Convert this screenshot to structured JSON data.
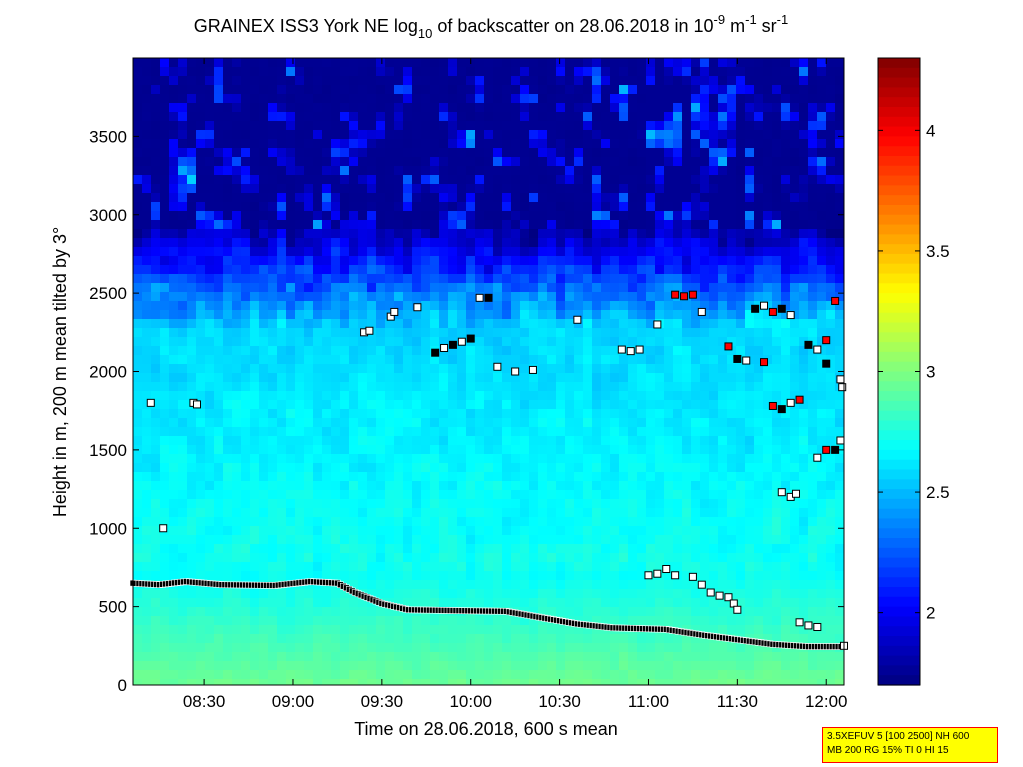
{
  "chart_data": {
    "type": "heatmap",
    "title_parts": {
      "prefix": "GRAINEX ISS3 York NE log",
      "sub": "10",
      "middle": " of backscatter on 28.06.2018 in 10",
      "sup1": "-9",
      "unit1": " m",
      "sup2": "-1",
      "unit2": " sr",
      "sup3": "-1"
    },
    "xlabel": "Time on 28.06.2018, 600 s mean",
    "ylabel": "Height in m, 200 m mean tilted by 3°",
    "x_range_hours": [
      8.1,
      12.1
    ],
    "ylim": [
      0,
      4000
    ],
    "x_ticks": [
      {
        "label": "08:30",
        "value": 8.5
      },
      {
        "label": "09:00",
        "value": 9.0
      },
      {
        "label": "09:30",
        "value": 9.5
      },
      {
        "label": "10:00",
        "value": 10.0
      },
      {
        "label": "10:30",
        "value": 10.5
      },
      {
        "label": "11:00",
        "value": 11.0
      },
      {
        "label": "11:30",
        "value": 11.5
      },
      {
        "label": "12:00",
        "value": 12.0
      }
    ],
    "y_ticks": [
      {
        "label": "0",
        "value": 0
      },
      {
        "label": "500",
        "value": 500
      },
      {
        "label": "1000",
        "value": 1000
      },
      {
        "label": "1500",
        "value": 1500
      },
      {
        "label": "2000",
        "value": 2000
      },
      {
        "label": "2500",
        "value": 2500
      },
      {
        "label": "3000",
        "value": 3000
      },
      {
        "label": "3500",
        "value": 3500
      }
    ],
    "colorbar": {
      "range": [
        1.7,
        4.3
      ],
      "ticks": [
        {
          "label": "2",
          "value": 2.0
        },
        {
          "label": "2.5",
          "value": 2.5
        },
        {
          "label": "3",
          "value": 3.0
        },
        {
          "label": "3.5",
          "value": 3.5
        },
        {
          "label": "4",
          "value": 4.0
        }
      ]
    },
    "boundary_layer_height": [
      [
        8.1,
        650
      ],
      [
        8.25,
        640
      ],
      [
        8.4,
        660
      ],
      [
        8.6,
        640
      ],
      [
        8.9,
        635
      ],
      [
        9.1,
        660
      ],
      [
        9.25,
        650
      ],
      [
        9.35,
        590
      ],
      [
        9.5,
        520
      ],
      [
        9.65,
        480
      ],
      [
        9.9,
        475
      ],
      [
        10.2,
        470
      ],
      [
        10.4,
        430
      ],
      [
        10.6,
        390
      ],
      [
        10.8,
        365
      ],
      [
        11.1,
        355
      ],
      [
        11.3,
        320
      ],
      [
        11.5,
        290
      ],
      [
        11.7,
        260
      ],
      [
        11.9,
        245
      ],
      [
        12.1,
        245
      ]
    ],
    "cloud_layer_points": [
      [
        8.2,
        1800
      ],
      [
        8.27,
        1000
      ],
      [
        8.44,
        1800
      ],
      [
        8.46,
        1790
      ],
      [
        9.4,
        2250
      ],
      [
        9.43,
        2260
      ],
      [
        9.55,
        2350
      ],
      [
        9.57,
        2380
      ],
      [
        9.7,
        2410
      ],
      [
        9.8,
        2120
      ],
      [
        9.85,
        2150
      ],
      [
        9.9,
        2170
      ],
      [
        9.95,
        2190
      ],
      [
        10.0,
        2210
      ],
      [
        10.05,
        2470
      ],
      [
        10.1,
        2470
      ],
      [
        10.15,
        2030
      ],
      [
        10.25,
        2000
      ],
      [
        10.35,
        2010
      ],
      [
        10.6,
        2330
      ],
      [
        10.85,
        2140
      ],
      [
        10.9,
        2130
      ],
      [
        10.95,
        2140
      ],
      [
        11.0,
        700
      ],
      [
        11.05,
        710
      ],
      [
        11.1,
        740
      ],
      [
        11.15,
        700
      ],
      [
        11.25,
        690
      ],
      [
        11.3,
        640
      ],
      [
        11.35,
        590
      ],
      [
        11.4,
        570
      ],
      [
        11.45,
        560
      ],
      [
        11.48,
        520
      ],
      [
        11.5,
        480
      ],
      [
        11.05,
        2300
      ],
      [
        11.15,
        2490
      ],
      [
        11.2,
        2480
      ],
      [
        11.25,
        2490
      ],
      [
        11.3,
        2380
      ],
      [
        11.45,
        2160
      ],
      [
        11.5,
        2080
      ],
      [
        11.55,
        2070
      ],
      [
        11.65,
        2060
      ],
      [
        11.6,
        2400
      ],
      [
        11.65,
        2420
      ],
      [
        11.7,
        2380
      ],
      [
        11.75,
        2400
      ],
      [
        11.8,
        2360
      ],
      [
        11.7,
        1780
      ],
      [
        11.75,
        1760
      ],
      [
        11.8,
        1800
      ],
      [
        11.85,
        1820
      ],
      [
        11.75,
        1230
      ],
      [
        11.8,
        1200
      ],
      [
        11.83,
        1220
      ],
      [
        11.85,
        400
      ],
      [
        11.9,
        380
      ],
      [
        11.95,
        370
      ],
      [
        11.9,
        2170
      ],
      [
        11.95,
        2140
      ],
      [
        12.0,
        2200
      ],
      [
        12.0,
        2050
      ],
      [
        11.95,
        1450
      ],
      [
        12.0,
        1500
      ],
      [
        12.05,
        1500
      ],
      [
        12.08,
        1560
      ],
      [
        12.05,
        2450
      ],
      [
        12.08,
        1950
      ],
      [
        12.09,
        1900
      ],
      [
        12.1,
        250
      ]
    ]
  },
  "info_box": {
    "line1": "3.5XEFUV 5 [100 2500] NH 600",
    "line2": "MB 200 RG 15% TI 0 HI 15"
  }
}
